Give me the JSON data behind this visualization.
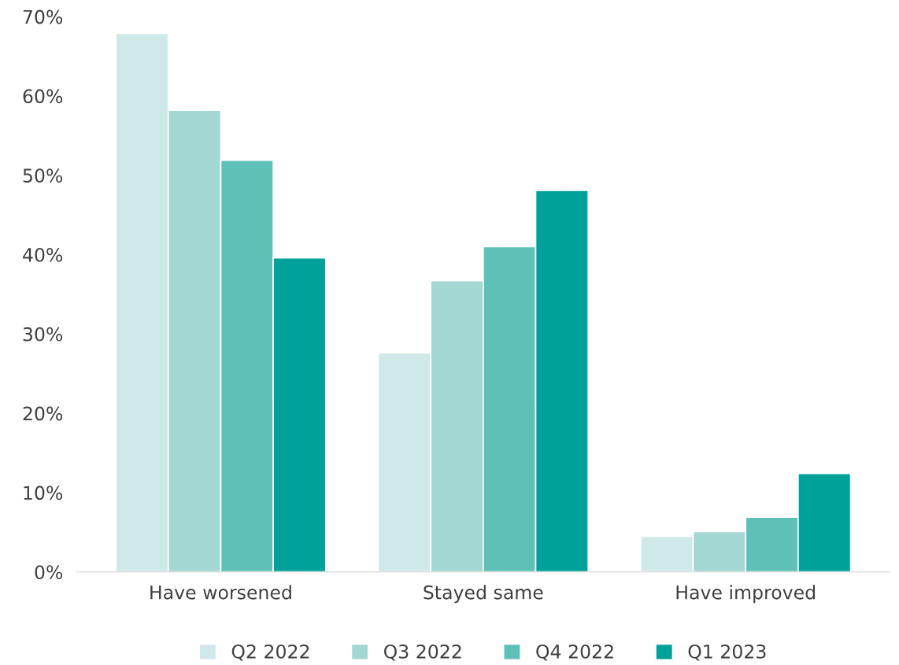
{
  "chart_data": {
    "type": "bar",
    "categories": [
      "Have worsened",
      "Stayed same",
      "Have improved"
    ],
    "series": [
      {
        "name": "Q2 2022",
        "color": "#cfe9e8",
        "values": [
          67.9,
          27.6,
          4.5
        ]
      },
      {
        "name": "Q3 2022",
        "color": "#a2d7d4",
        "values": [
          58.2,
          36.7,
          5.1
        ]
      },
      {
        "name": "Q4 2022",
        "color": "#5fc0b8",
        "values": [
          51.9,
          41.0,
          6.9
        ]
      },
      {
        "name": "Q1 2023",
        "color": "#00a19a",
        "values": [
          39.6,
          48.1,
          12.4
        ]
      }
    ],
    "ylim": [
      0,
      70
    ],
    "yticks": [
      {
        "value": 0,
        "label": "0%"
      },
      {
        "value": 10,
        "label": "10%"
      },
      {
        "value": 20,
        "label": "20%"
      },
      {
        "value": 30,
        "label": "30%"
      },
      {
        "value": 40,
        "label": "40%"
      },
      {
        "value": 50,
        "label": "50%"
      },
      {
        "value": 60,
        "label": "60%"
      },
      {
        "value": 70,
        "label": "70%"
      }
    ],
    "grid": false,
    "legend": "bottom"
  }
}
